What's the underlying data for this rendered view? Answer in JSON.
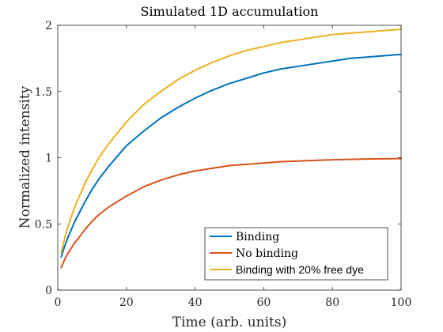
{
  "chart_data": {
    "type": "line",
    "title": "Simulated 1D accumulation",
    "xlabel": "Time (arb. units)",
    "ylabel": "Normalized intensity",
    "xlim": [
      0,
      100
    ],
    "ylim": [
      0,
      2
    ],
    "xticks": [
      0,
      20,
      40,
      60,
      80,
      100
    ],
    "xtick_labels": [
      "0",
      "20",
      "40",
      "60",
      "80",
      "100"
    ],
    "yticks": [
      0,
      0.5,
      1,
      1.5,
      2
    ],
    "ytick_labels": [
      "0",
      "0.5",
      "1",
      "1.5",
      "2"
    ],
    "grid": false,
    "legend_position": "bottom-right",
    "series": [
      {
        "name": "Binding",
        "color": "#0072BD",
        "x": [
          1,
          2,
          3,
          4,
          5,
          6,
          8,
          10,
          12,
          15,
          20,
          25,
          30,
          35,
          40,
          45,
          50,
          55,
          60,
          65,
          70,
          75,
          80,
          85,
          90,
          95,
          100
        ],
        "y": [
          0.25,
          0.33,
          0.4,
          0.46,
          0.52,
          0.57,
          0.67,
          0.76,
          0.84,
          0.94,
          1.09,
          1.2,
          1.3,
          1.38,
          1.45,
          1.51,
          1.56,
          1.6,
          1.64,
          1.67,
          1.69,
          1.71,
          1.73,
          1.75,
          1.76,
          1.77,
          1.78
        ]
      },
      {
        "name": "No binding",
        "color": "#D95319",
        "x": [
          1,
          2,
          3,
          4,
          5,
          6,
          8,
          10,
          12,
          15,
          20,
          25,
          30,
          35,
          40,
          45,
          50,
          55,
          60,
          65,
          70,
          75,
          80,
          85,
          90,
          95,
          100
        ],
        "y": [
          0.17,
          0.23,
          0.28,
          0.32,
          0.36,
          0.39,
          0.46,
          0.52,
          0.57,
          0.63,
          0.71,
          0.78,
          0.83,
          0.87,
          0.9,
          0.92,
          0.94,
          0.95,
          0.96,
          0.97,
          0.975,
          0.98,
          0.984,
          0.987,
          0.99,
          0.992,
          0.993
        ]
      },
      {
        "name": "Binding with 20% free dye",
        "color": "#EDB120",
        "x": [
          1,
          2,
          3,
          4,
          5,
          6,
          8,
          10,
          12,
          15,
          20,
          25,
          30,
          35,
          40,
          45,
          50,
          55,
          60,
          65,
          70,
          75,
          80,
          85,
          90,
          95,
          100
        ],
        "y": [
          0.28,
          0.39,
          0.48,
          0.56,
          0.63,
          0.69,
          0.81,
          0.91,
          1.0,
          1.11,
          1.27,
          1.4,
          1.5,
          1.59,
          1.66,
          1.72,
          1.77,
          1.81,
          1.84,
          1.87,
          1.89,
          1.91,
          1.93,
          1.94,
          1.95,
          1.96,
          1.97
        ]
      }
    ]
  }
}
